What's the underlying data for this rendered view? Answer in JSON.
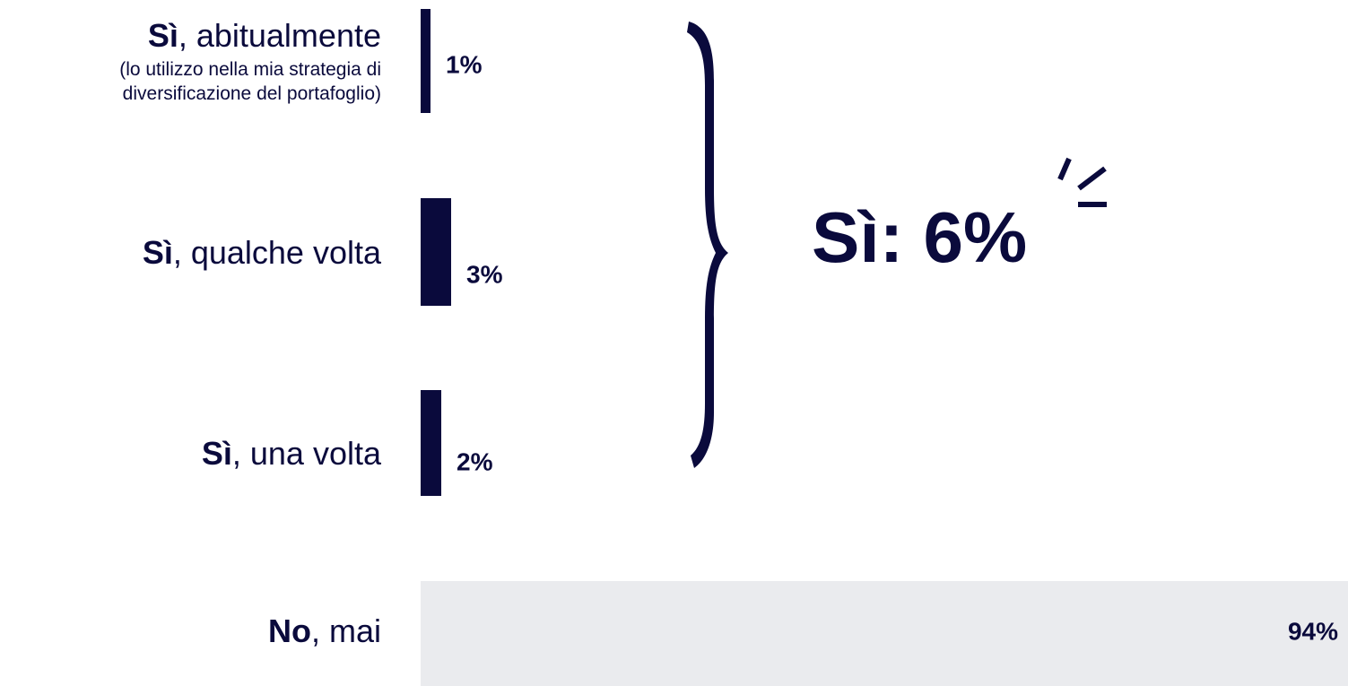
{
  "colors": {
    "yes_bar": "#0a0a3c",
    "no_bar": "#eaebee",
    "text": "#0a0a3c"
  },
  "chart_data": {
    "type": "bar",
    "orientation": "horizontal",
    "categories": [
      {
        "strong": "Sì",
        "rest": ", abitualmente",
        "sub": "(lo utilizzo nella mia strategia di diversificazione del portafoglio)",
        "sub_lines": [
          "(lo utilizzo nella mia strategia di",
          "diversificazione del portafoglio)"
        ]
      },
      {
        "strong": "Sì",
        "rest": ", qualche volta"
      },
      {
        "strong": "Sì",
        "rest": ", una volta"
      },
      {
        "strong": "No",
        "rest": ", mai"
      }
    ],
    "values": [
      1,
      3,
      2,
      94
    ],
    "value_labels": [
      "1%",
      "3%",
      "2%",
      "94%"
    ],
    "unit": "%",
    "xlim": [
      0,
      94
    ],
    "grid": false,
    "legend": "none"
  },
  "summary": {
    "label": "Sì: 6%",
    "icon": "sparkle-accent-icon"
  },
  "bracket": {
    "icon": "curly-brace-icon"
  }
}
